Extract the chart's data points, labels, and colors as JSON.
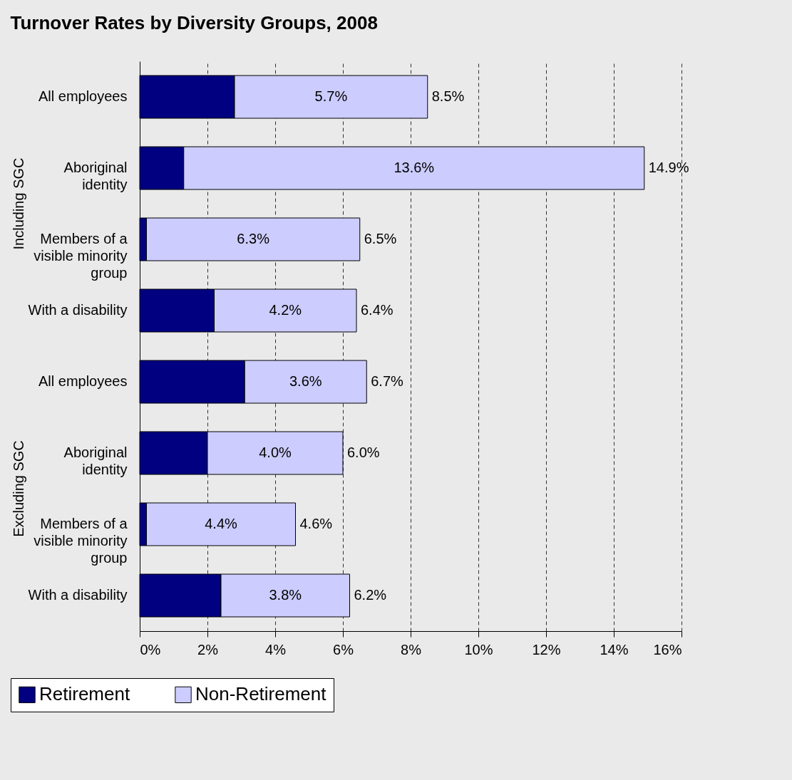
{
  "chart_data": {
    "type": "bar",
    "orientation": "horizontal",
    "stacked": true,
    "title": "Turnover Rates by Diversity Groups, 2008",
    "categories": [
      "All employees",
      "Aboriginal identity",
      "Members of a visible minority group",
      "With a disability",
      "All employees",
      "Aboriginal identity",
      "Members of a visible minority group",
      "With a disability"
    ],
    "series": [
      {
        "name": "Retirement",
        "color": "#000080",
        "values": [
          2.8,
          1.3,
          0.2,
          2.2,
          3.1,
          2.0,
          0.2,
          2.4
        ]
      },
      {
        "name": "Non-Retirement",
        "color": "#ccccff",
        "values": [
          5.7,
          13.6,
          6.3,
          4.2,
          3.6,
          4.0,
          4.4,
          3.8
        ],
        "value_labels": [
          "5.7%",
          "13.6%",
          "6.3%",
          "4.2%",
          "3.6%",
          "4.0%",
          "4.4%",
          "3.8%"
        ]
      }
    ],
    "totals": [
      "8.5%",
      "14.9%",
      "6.5%",
      "6.4%",
      "6.7%",
      "6.0%",
      "4.6%",
      "6.2%"
    ],
    "annotations": [
      "Including SGC",
      "Excluding SGC"
    ],
    "xlim": [
      0,
      16
    ],
    "xticks": [
      {
        "value": 0,
        "label": "0%"
      },
      {
        "value": 2,
        "label": "2%"
      },
      {
        "value": 4,
        "label": "4%"
      },
      {
        "value": 6,
        "label": "6%"
      },
      {
        "value": 8,
        "label": "8%"
      },
      {
        "value": 10,
        "label": "10%"
      },
      {
        "value": 12,
        "label": "12%"
      },
      {
        "value": 14,
        "label": "14%"
      },
      {
        "value": 16,
        "label": "16%"
      }
    ],
    "grid": "x",
    "legend": "bottom"
  }
}
